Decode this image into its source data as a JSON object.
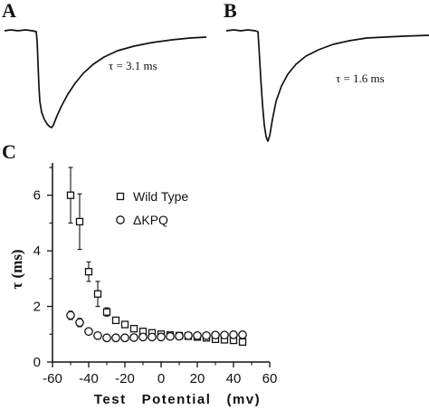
{
  "panels": {
    "a": {
      "letter": "A",
      "tau_label": "τ = 3.1 ms"
    },
    "b": {
      "letter": "B",
      "tau_label": "τ = 1.6 ms"
    },
    "c": {
      "letter": "C"
    }
  },
  "chart_data": {
    "type": "scatter",
    "xlabel": "Test   Potential   (mv)",
    "ylabel": "τ (ms)",
    "xlim": [
      -60,
      60
    ],
    "ylim": [
      0,
      7
    ],
    "xticks": [
      -60,
      -40,
      -20,
      0,
      20,
      40,
      60
    ],
    "yticks": [
      0,
      2,
      4,
      6
    ],
    "xtick_labels": [
      "-60",
      "-40",
      "-20",
      "0",
      "20",
      "40",
      "60"
    ],
    "ytick_labels": [
      "0",
      "2",
      "4",
      "6"
    ],
    "legend_position": "upper-right",
    "grid": false,
    "series": [
      {
        "name": "Wild Type",
        "marker": "square",
        "x": [
          -50,
          -45,
          -40,
          -35,
          -30,
          -25,
          -20,
          -15,
          -10,
          -5,
          0,
          5,
          10,
          15,
          20,
          25,
          30,
          35,
          40,
          45
        ],
        "y": [
          6.0,
          5.05,
          3.25,
          2.45,
          1.8,
          1.5,
          1.35,
          1.2,
          1.1,
          1.05,
          1.0,
          0.97,
          0.95,
          0.93,
          0.9,
          0.87,
          0.82,
          0.8,
          0.78,
          0.72
        ],
        "err": [
          1.0,
          1.0,
          0.35,
          0.45,
          0.15,
          0.12,
          0.08,
          0.06,
          0.05,
          0.05,
          0.04,
          0.04,
          0.04,
          0.04,
          0.04,
          0.04,
          0.04,
          0.04,
          0.04,
          0.04
        ]
      },
      {
        "name": "ΔKPQ",
        "marker": "circle",
        "x": [
          -50,
          -45,
          -40,
          -35,
          -30,
          -25,
          -20,
          -15,
          -10,
          -5,
          0,
          5,
          10,
          15,
          20,
          25,
          30,
          35,
          40,
          45
        ],
        "y": [
          1.68,
          1.42,
          1.1,
          0.95,
          0.87,
          0.87,
          0.87,
          0.88,
          0.9,
          0.9,
          0.9,
          0.92,
          0.93,
          0.95,
          0.95,
          0.95,
          0.97,
          0.97,
          0.98,
          0.98
        ],
        "err": [
          0.15,
          0.15,
          0.05,
          0.04,
          0.03,
          0.03,
          0.03,
          0.03,
          0.03,
          0.03,
          0.03,
          0.03,
          0.03,
          0.03,
          0.03,
          0.03,
          0.03,
          0.03,
          0.03,
          0.03
        ]
      }
    ]
  }
}
